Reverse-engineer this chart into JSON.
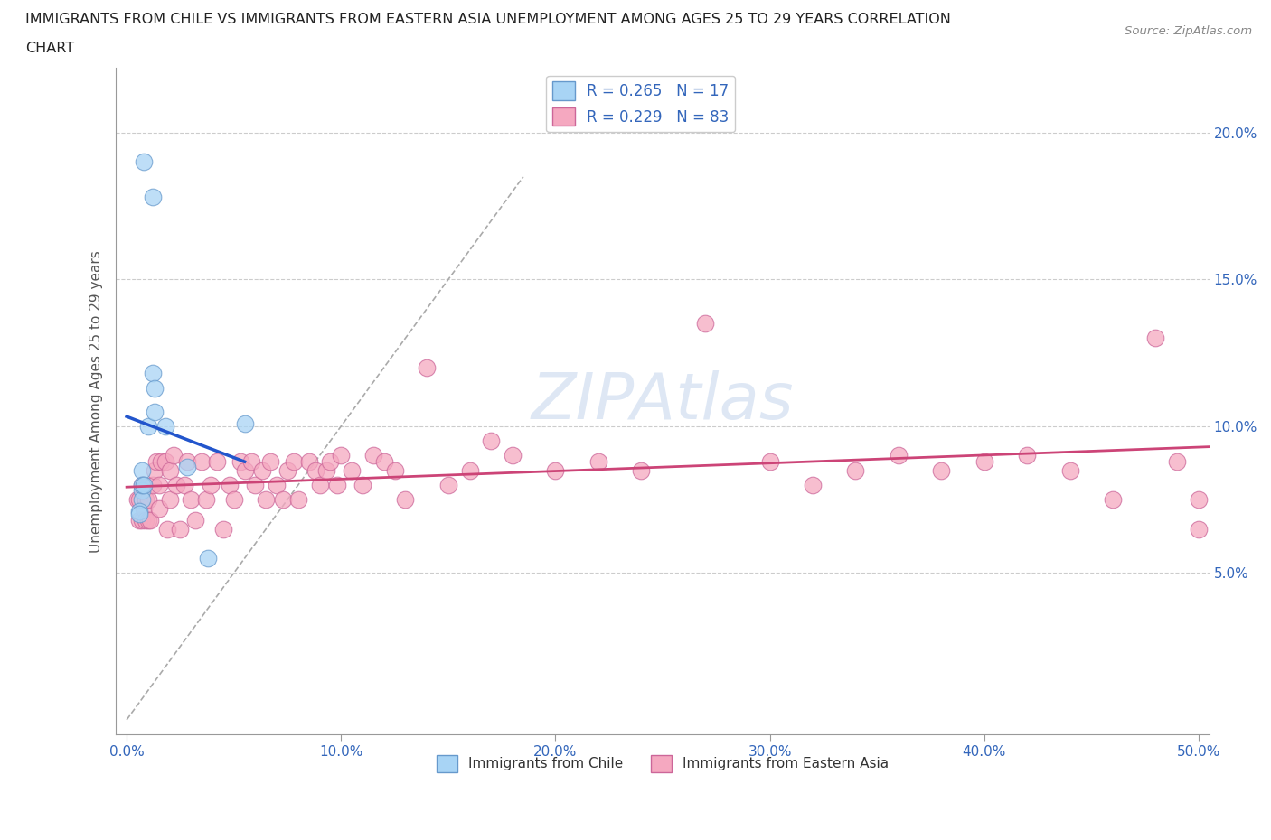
{
  "title_line1": "IMMIGRANTS FROM CHILE VS IMMIGRANTS FROM EASTERN ASIA UNEMPLOYMENT AMONG AGES 25 TO 29 YEARS CORRELATION",
  "title_line2": "CHART",
  "source": "Source: ZipAtlas.com",
  "ylabel": "Unemployment Among Ages 25 to 29 years",
  "xlim": [
    -0.005,
    0.505
  ],
  "ylim": [
    -0.005,
    0.222
  ],
  "x_ticks": [
    0.0,
    0.1,
    0.2,
    0.3,
    0.4,
    0.5
  ],
  "x_tick_labels": [
    "0.0%",
    "10.0%",
    "20.0%",
    "30.0%",
    "40.0%",
    "50.0%"
  ],
  "y_ticks": [
    0.05,
    0.1,
    0.15,
    0.2
  ],
  "y_tick_labels": [
    "5.0%",
    "10.0%",
    "15.0%",
    "20.0%"
  ],
  "chile_color": "#a8d4f5",
  "chile_edge_color": "#6699cc",
  "eastern_asia_color": "#f5a8c0",
  "eastern_asia_edge_color": "#cc6699",
  "chile_R": 0.265,
  "chile_N": 17,
  "eastern_asia_R": 0.229,
  "eastern_asia_N": 83,
  "legend_label_chile": "Immigrants from Chile",
  "legend_label_east": "Immigrants from Eastern Asia",
  "watermark": "ZIPAtlas",
  "chile_scatter_x": [
    0.008,
    0.012,
    0.007,
    0.007,
    0.007,
    0.006,
    0.006,
    0.007,
    0.008,
    0.01,
    0.012,
    0.013,
    0.013,
    0.018,
    0.028,
    0.038,
    0.055
  ],
  "chile_scatter_y": [
    0.19,
    0.178,
    0.085,
    0.078,
    0.075,
    0.071,
    0.07,
    0.08,
    0.08,
    0.1,
    0.118,
    0.113,
    0.105,
    0.1,
    0.086,
    0.055,
    0.101
  ],
  "eastern_asia_scatter_x": [
    0.005,
    0.006,
    0.006,
    0.007,
    0.007,
    0.008,
    0.008,
    0.009,
    0.009,
    0.01,
    0.01,
    0.011,
    0.012,
    0.013,
    0.014,
    0.015,
    0.015,
    0.016,
    0.018,
    0.019,
    0.02,
    0.02,
    0.022,
    0.023,
    0.025,
    0.027,
    0.028,
    0.03,
    0.032,
    0.035,
    0.037,
    0.039,
    0.042,
    0.045,
    0.048,
    0.05,
    0.053,
    0.055,
    0.058,
    0.06,
    0.063,
    0.065,
    0.067,
    0.07,
    0.073,
    0.075,
    0.078,
    0.08,
    0.085,
    0.088,
    0.09,
    0.093,
    0.095,
    0.098,
    0.1,
    0.105,
    0.11,
    0.115,
    0.12,
    0.125,
    0.13,
    0.14,
    0.15,
    0.16,
    0.17,
    0.18,
    0.2,
    0.22,
    0.24,
    0.27,
    0.3,
    0.32,
    0.34,
    0.36,
    0.38,
    0.4,
    0.42,
    0.44,
    0.46,
    0.48,
    0.49,
    0.5,
    0.5
  ],
  "eastern_asia_scatter_y": [
    0.075,
    0.068,
    0.075,
    0.068,
    0.08,
    0.072,
    0.08,
    0.068,
    0.075,
    0.068,
    0.075,
    0.068,
    0.08,
    0.085,
    0.088,
    0.072,
    0.08,
    0.088,
    0.088,
    0.065,
    0.075,
    0.085,
    0.09,
    0.08,
    0.065,
    0.08,
    0.088,
    0.075,
    0.068,
    0.088,
    0.075,
    0.08,
    0.088,
    0.065,
    0.08,
    0.075,
    0.088,
    0.085,
    0.088,
    0.08,
    0.085,
    0.075,
    0.088,
    0.08,
    0.075,
    0.085,
    0.088,
    0.075,
    0.088,
    0.085,
    0.08,
    0.085,
    0.088,
    0.08,
    0.09,
    0.085,
    0.08,
    0.09,
    0.088,
    0.085,
    0.075,
    0.12,
    0.08,
    0.085,
    0.095,
    0.09,
    0.085,
    0.088,
    0.085,
    0.135,
    0.088,
    0.08,
    0.085,
    0.09,
    0.085,
    0.088,
    0.09,
    0.085,
    0.075,
    0.13,
    0.088,
    0.065,
    0.075
  ],
  "background_color": "#ffffff",
  "grid_color": "#cccccc",
  "grid_linestyle": "--"
}
